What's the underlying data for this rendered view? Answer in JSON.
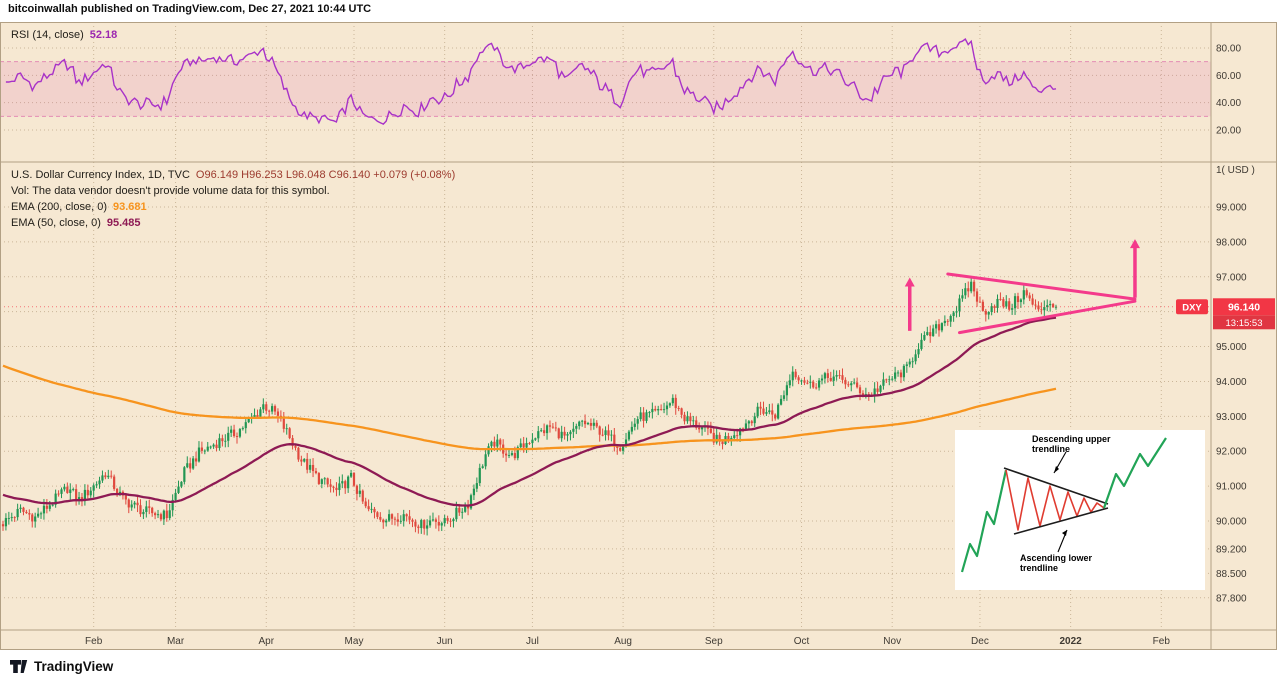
{
  "header": {
    "published_line": "bitcoinwallah published on TradingView.com, Dec 27, 2021 10:44 UTC"
  },
  "rsi_panel": {
    "legend_label": "RSI (14, close)",
    "legend_value": "52.18",
    "ticks": [
      {
        "v": 80,
        "t": "80.00"
      },
      {
        "v": 60,
        "t": "60.00"
      },
      {
        "v": 40,
        "t": "40.00"
      },
      {
        "v": 20,
        "t": "20.00"
      }
    ],
    "band": {
      "upper": 70,
      "lower": 30
    }
  },
  "main_panel": {
    "legend_title": "U.S. Dollar Currency Index, 1D, TVC",
    "legend_ohlc": "O96.149 H96.253 L96.048 C96.140 +0.079 (+0.08%)",
    "vol_note": "Vol: The data vendor doesn't provide volume data for this symbol.",
    "ema200_label": "EMA (200, close, 0)",
    "ema200_value": "93.681",
    "ema50_label": "EMA (50, close, 0)",
    "ema50_value": "95.485",
    "unit_label": "1( USD )",
    "price_ticks": [
      {
        "v": 99,
        "t": "99.000"
      },
      {
        "v": 98,
        "t": "98.000"
      },
      {
        "v": 97,
        "t": "97.000"
      },
      {
        "v": 96,
        "t": "96.000"
      },
      {
        "v": 95,
        "t": "95.000"
      },
      {
        "v": 94,
        "t": "94.000"
      },
      {
        "v": 93,
        "t": "93.000"
      },
      {
        "v": 92,
        "t": "92.000"
      },
      {
        "v": 91,
        "t": "91.000"
      },
      {
        "v": 90,
        "t": "90.000"
      },
      {
        "v": 89.2,
        "t": "89.200"
      },
      {
        "v": 88.5,
        "t": "88.500"
      },
      {
        "v": 87.8,
        "t": "87.800"
      }
    ],
    "symbol_badge": "DXY",
    "last_price_label": "96.140",
    "countdown": "13:15:53"
  },
  "time_axis": {
    "labels": [
      {
        "t": "Feb",
        "d": 31
      },
      {
        "t": "Mar",
        "d": 59
      },
      {
        "t": "Apr",
        "d": 90
      },
      {
        "t": "May",
        "d": 120
      },
      {
        "t": "Jun",
        "d": 151
      },
      {
        "t": "Jul",
        "d": 181
      },
      {
        "t": "Aug",
        "d": 212
      },
      {
        "t": "Sep",
        "d": 243
      },
      {
        "t": "Oct",
        "d": 273
      },
      {
        "t": "Nov",
        "d": 304
      },
      {
        "t": "Dec",
        "d": 334
      },
      {
        "t": "2022",
        "d": 365,
        "major": true
      },
      {
        "t": "Feb",
        "d": 396
      }
    ]
  },
  "inset": {
    "upper_label_lines": [
      "Descending upper",
      "trendline"
    ],
    "lower_label_lines": [
      "Ascending lower",
      "trendline"
    ]
  },
  "footer": {
    "brand": "TradingView"
  },
  "colors": {
    "bg": "#f6e8d2",
    "grid": "rgba(150,123,85,0.45)",
    "border": "#b2a084",
    "axis_text": "#3f3a33",
    "candle_up": "#219653",
    "candle_down": "#e0493e",
    "rsi_line": "#a832c8",
    "rsi_band_fill": "rgba(219,77,170,0.14)",
    "rsi_band_line": "#d84a9e",
    "ema200": "#f7941e",
    "ema50": "#8e1a54",
    "pattern_pink": "#f43a8b",
    "badge_red": "#f23645",
    "countdown_red": "#e03642",
    "inset_green": "#22a457",
    "inset_red": "#e03c31",
    "inset_dark": "#1d1d1d"
  },
  "chart_data": {
    "type": "candlestick",
    "symbol": "DXY",
    "title": "U.S. Dollar Currency Index",
    "timeframe": "1D",
    "exchange": "TVC",
    "current": {
      "open": 96.149,
      "high": 96.253,
      "low": 96.048,
      "close": 96.14,
      "change": "+0.079",
      "change_pct": "+0.08%"
    },
    "indicators": {
      "rsi_period": 14,
      "rsi_value": 52.18,
      "ema200": 93.681,
      "ema50": 95.485
    },
    "last_price": 96.14,
    "days": 360,
    "price_axis_range": [
      87.3,
      100.3
    ],
    "rsi_axis_range": [
      15,
      90
    ],
    "close_anchors": [
      [
        0,
        89.95
      ],
      [
        6,
        90.3
      ],
      [
        11,
        90.1
      ],
      [
        17,
        90.55
      ],
      [
        22,
        90.95
      ],
      [
        26,
        90.6
      ],
      [
        31,
        91.0
      ],
      [
        35,
        91.38
      ],
      [
        41,
        90.62
      ],
      [
        48,
        90.28
      ],
      [
        56,
        90.15
      ],
      [
        62,
        91.4
      ],
      [
        67,
        91.95
      ],
      [
        74,
        92.3
      ],
      [
        80,
        92.55
      ],
      [
        86,
        93.0
      ],
      [
        89,
        93.32
      ],
      [
        93,
        93.1
      ],
      [
        97,
        92.55
      ],
      [
        102,
        91.75
      ],
      [
        108,
        91.2
      ],
      [
        114,
        90.85
      ],
      [
        119,
        91.25
      ],
      [
        124,
        90.35
      ],
      [
        131,
        90.05
      ],
      [
        137,
        90.18
      ],
      [
        143,
        89.88
      ],
      [
        147,
        90.05
      ],
      [
        151,
        89.95
      ],
      [
        159,
        90.5
      ],
      [
        165,
        91.9
      ],
      [
        168,
        92.25
      ],
      [
        174,
        91.85
      ],
      [
        181,
        92.4
      ],
      [
        187,
        92.7
      ],
      [
        193,
        92.35
      ],
      [
        198,
        92.85
      ],
      [
        204,
        92.6
      ],
      [
        211,
        92.15
      ],
      [
        217,
        92.95
      ],
      [
        224,
        93.1
      ],
      [
        229,
        93.45
      ],
      [
        233,
        92.95
      ],
      [
        239,
        92.65
      ],
      [
        245,
        92.25
      ],
      [
        252,
        92.65
      ],
      [
        259,
        93.2
      ],
      [
        264,
        93.05
      ],
      [
        270,
        94.3
      ],
      [
        276,
        93.9
      ],
      [
        283,
        94.15
      ],
      [
        289,
        93.95
      ],
      [
        296,
        93.6
      ],
      [
        303,
        94.05
      ],
      [
        309,
        94.35
      ],
      [
        313,
        95.05
      ],
      [
        319,
        95.5
      ],
      [
        326,
        96.1
      ],
      [
        331,
        96.8
      ],
      [
        335,
        95.98
      ],
      [
        340,
        96.3
      ],
      [
        344,
        96.12
      ],
      [
        349,
        96.55
      ],
      [
        354,
        95.98
      ],
      [
        357,
        96.28
      ],
      [
        360,
        96.14
      ]
    ],
    "ema50_seed": 90.75,
    "ema200_seed": 94.45,
    "pattern": {
      "name": "symmetrical-triangle",
      "upper": [
        [
          323,
          97.08
        ],
        [
          387,
          96.36
        ]
      ],
      "lower": [
        [
          327,
          95.4
        ],
        [
          387,
          96.3
        ]
      ],
      "arrows": [
        {
          "day": 310,
          "from": 95.45,
          "to": 96.98
        },
        {
          "day": 387,
          "from": 96.4,
          "to": 98.08
        }
      ]
    }
  }
}
